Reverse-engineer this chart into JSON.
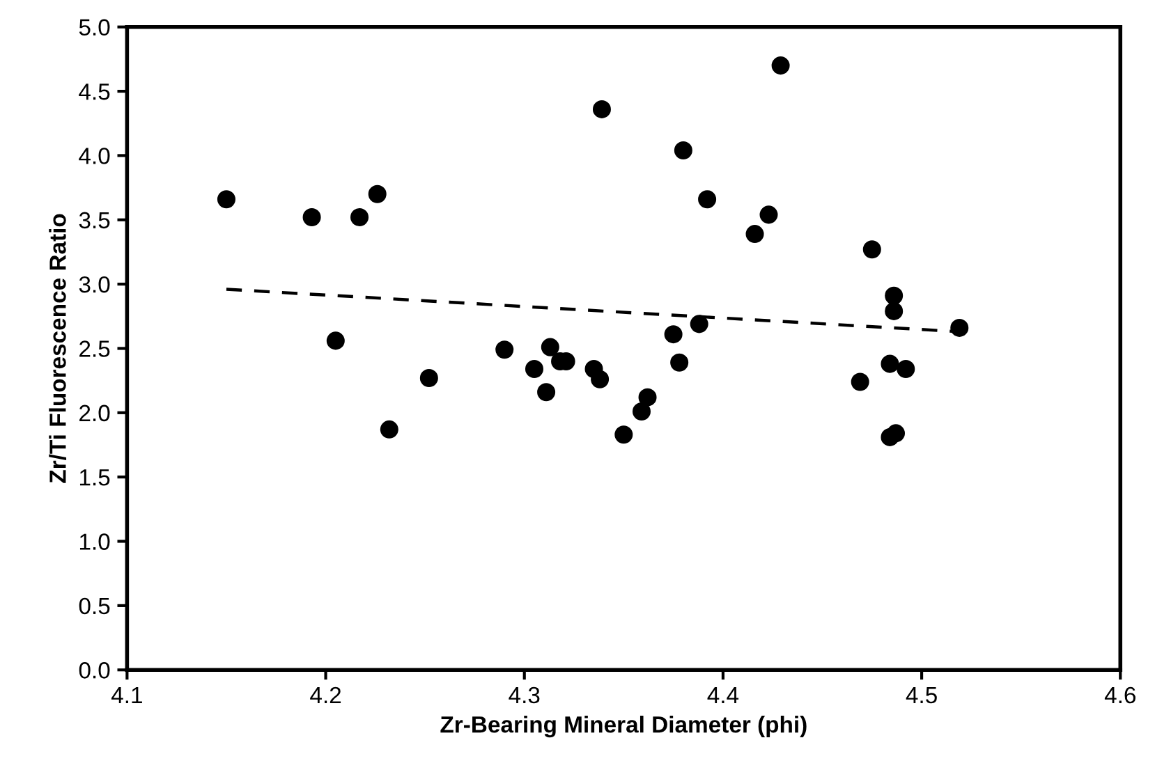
{
  "chart_data": {
    "type": "scatter",
    "xlabel": "Zr-Bearing Mineral Diameter (phi)",
    "ylabel": "Zr/Ti Fluorescence Ratio",
    "xlim": [
      4.1,
      4.6
    ],
    "xticks": [
      4.1,
      4.2,
      4.3,
      4.4,
      4.5,
      4.6
    ],
    "ylim": [
      0,
      5
    ],
    "yticks": [
      {
        "value": 0,
        "label": "0.0"
      },
      {
        "value": 0.5,
        "label": "0.5"
      },
      {
        "value": 1,
        "label": "1.0"
      },
      {
        "value": 1.5,
        "label": "1.5"
      },
      {
        "value": 2,
        "label": "2.0"
      },
      {
        "value": 2.5,
        "label": "2.5"
      },
      {
        "value": 3,
        "label": "3.0"
      },
      {
        "value": 3.5,
        "label": "3.5"
      },
      {
        "value": 4,
        "label": "4.0"
      },
      {
        "value": 4.5,
        "label": "4.5"
      },
      {
        "value": 5,
        "label": "5.0"
      }
    ],
    "grid": false,
    "legend": false,
    "series": [
      {
        "color": "#000000",
        "marker": "circle",
        "x": [
          4.15,
          4.193,
          4.217,
          4.226,
          4.205,
          4.252,
          4.232,
          4.29,
          4.305,
          4.313,
          4.311,
          4.318,
          4.321,
          4.335,
          4.338,
          4.339,
          4.35,
          4.359,
          4.362,
          4.375,
          4.378,
          4.38,
          4.388,
          4.392,
          4.416,
          4.423,
          4.429,
          4.469,
          4.475,
          4.484,
          4.486,
          4.486,
          4.492,
          4.484,
          4.487,
          4.519
        ],
        "values": [
          3.66,
          3.52,
          3.52,
          3.7,
          2.56,
          2.27,
          1.87,
          2.49,
          2.34,
          2.51,
          2.16,
          2.4,
          2.4,
          2.34,
          2.26,
          4.36,
          1.83,
          2.01,
          2.12,
          2.61,
          2.39,
          4.04,
          2.69,
          3.66,
          3.39,
          3.54,
          4.7,
          2.24,
          3.27,
          2.38,
          2.79,
          2.91,
          2.34,
          1.81,
          1.84,
          2.66
        ]
      },
      {
        "type": "line",
        "color": "#000000",
        "marker": "none",
        "line_style": "dashed",
        "x": [
          4.15,
          4.519
        ],
        "values": [
          2.96,
          2.63
        ]
      }
    ]
  }
}
